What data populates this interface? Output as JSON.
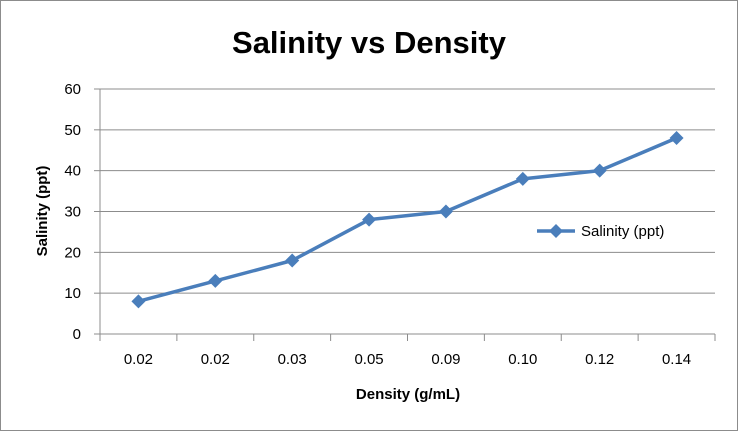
{
  "chart_data": {
    "type": "line",
    "title": "Salinity vs Density",
    "xlabel": "Density (g/mL)",
    "ylabel": "Salinity (ppt)",
    "categories": [
      "0.02",
      "0.02",
      "0.03",
      "0.05",
      "0.09",
      "0.10",
      "0.12",
      "0.14"
    ],
    "series": [
      {
        "name": "Salinity (ppt)",
        "values": [
          8,
          13,
          18,
          28,
          30,
          38,
          40,
          48
        ],
        "color": "#4a7ebb",
        "marker": "diamond"
      }
    ],
    "ylim": [
      0,
      60
    ],
    "yticks": [
      "0",
      "10",
      "20",
      "30",
      "40",
      "50",
      "60"
    ],
    "grid": "horizontal",
    "legend_position": "right"
  }
}
